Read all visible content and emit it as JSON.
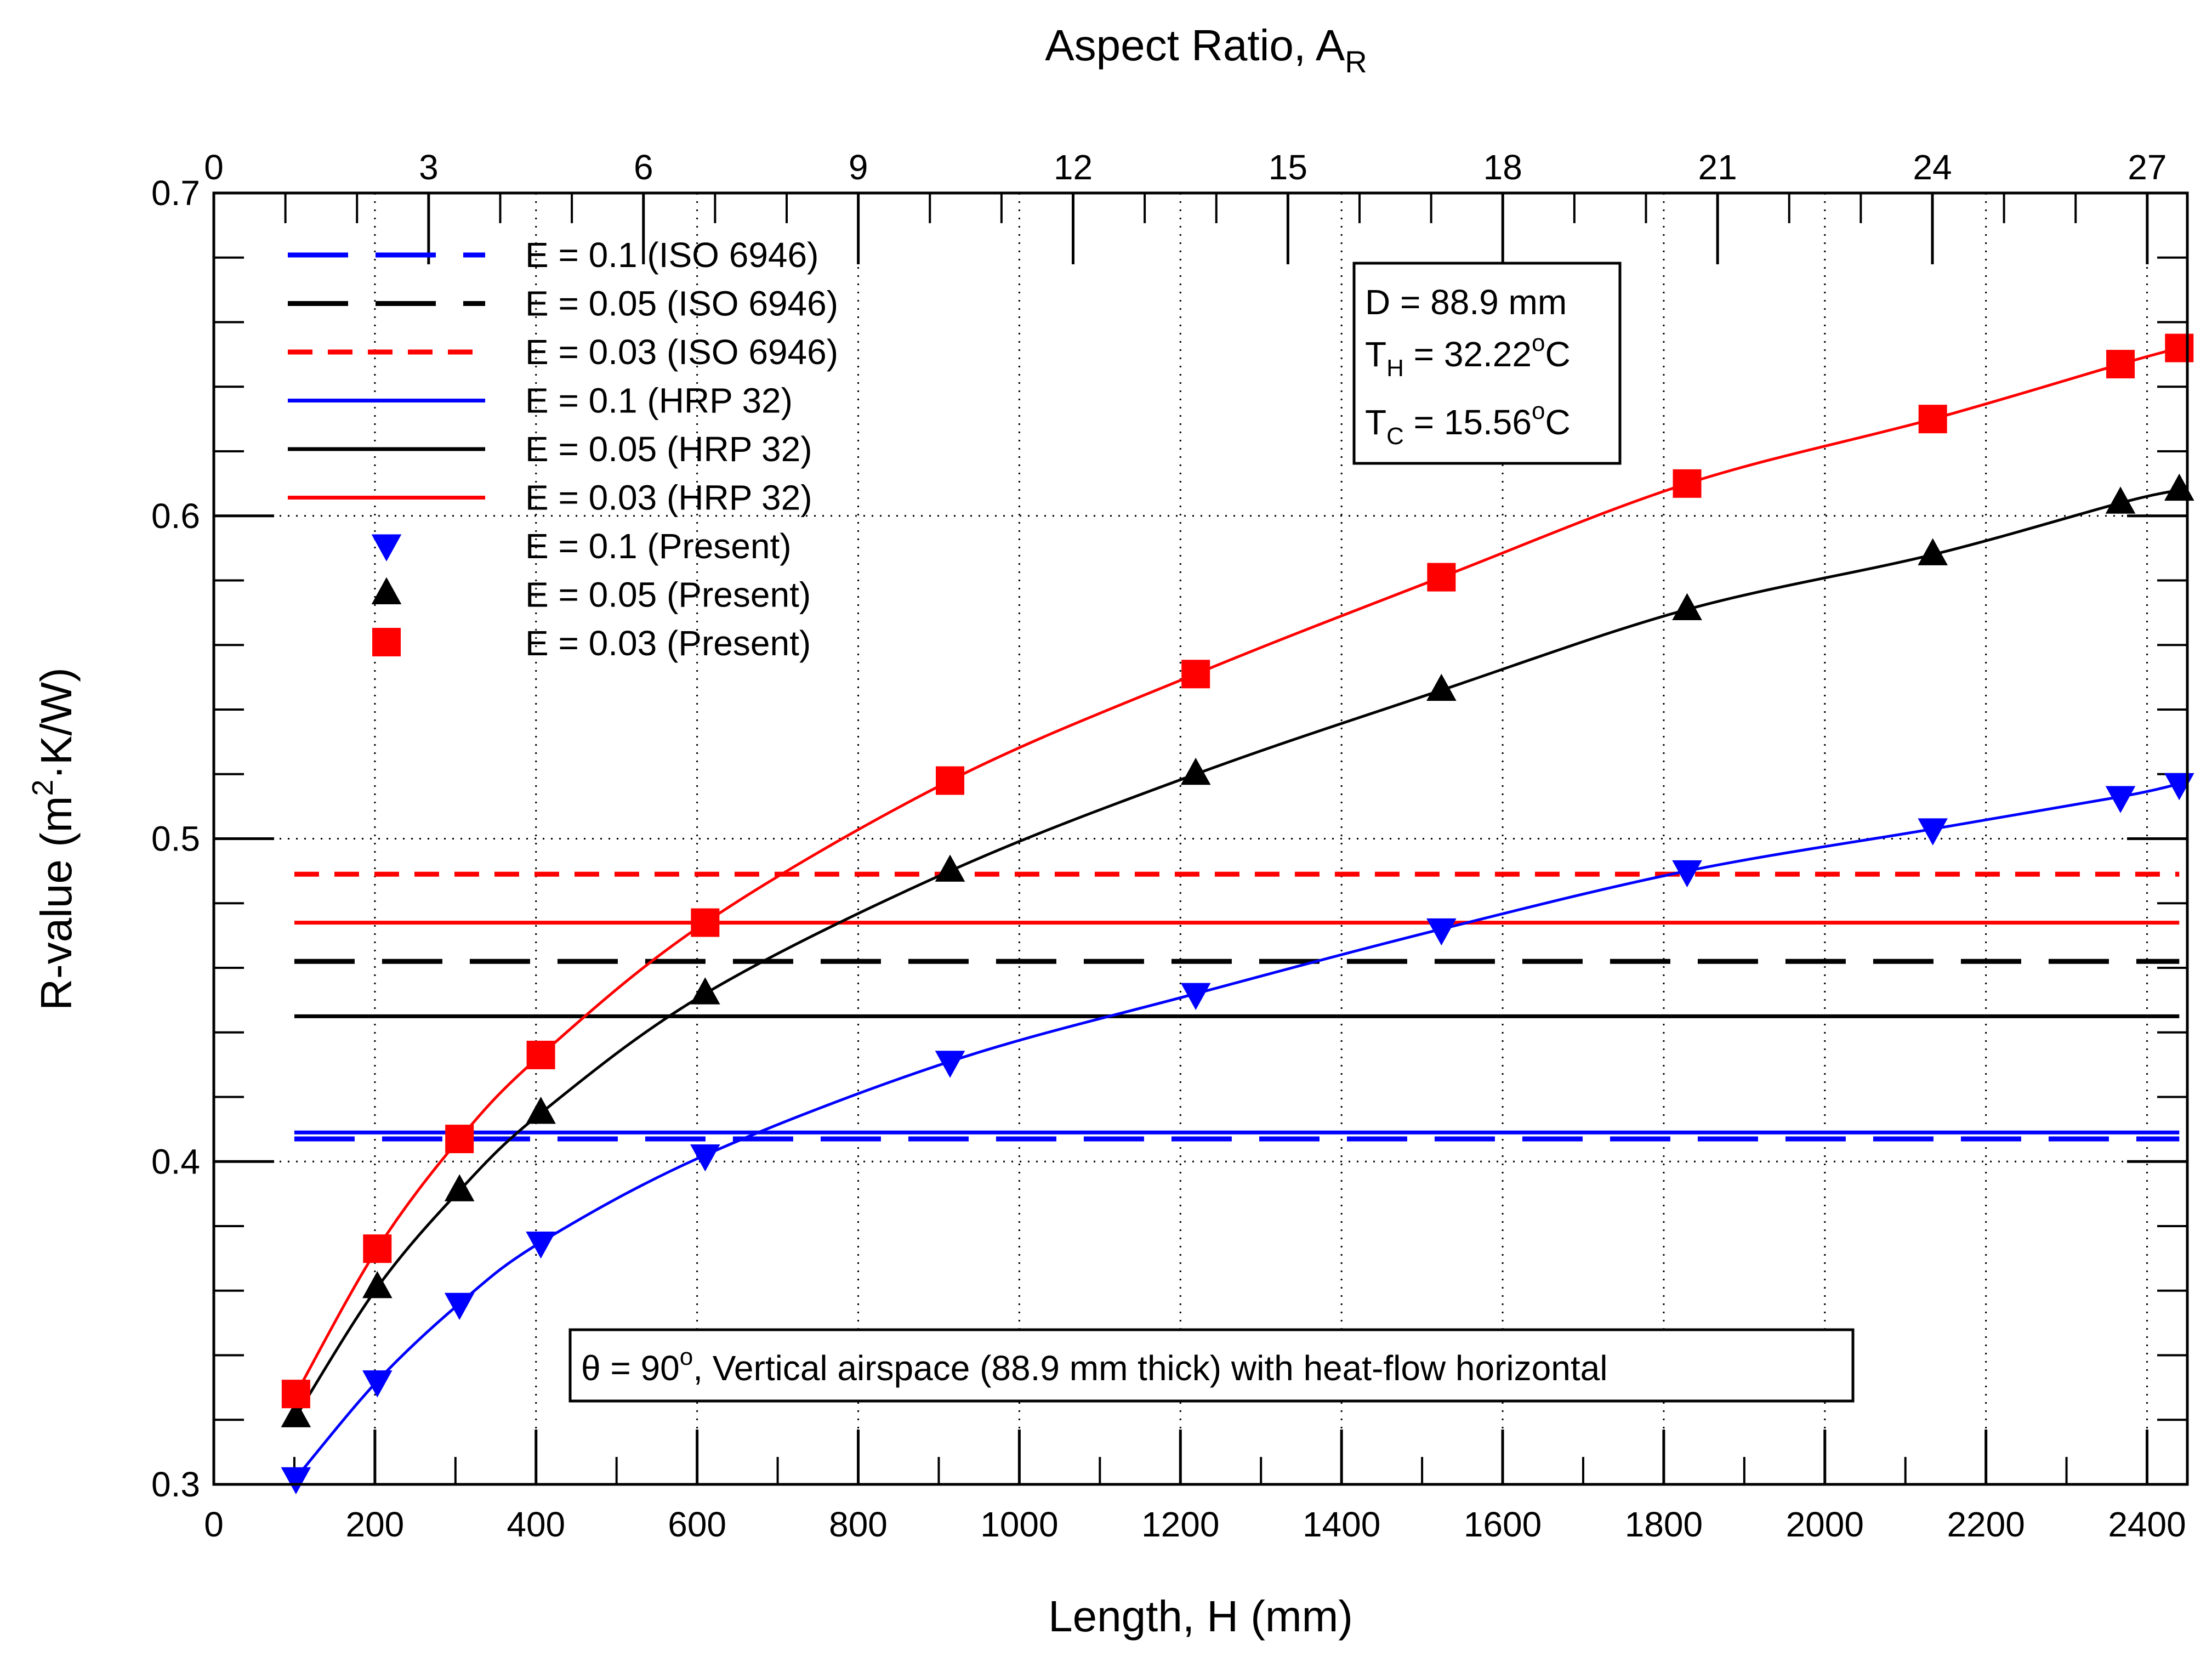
{
  "chart_data": {
    "type": "line",
    "title": "",
    "xlabel": "Length, H (mm)",
    "ylabel_main": "R-value (m",
    "ylabel_sup": "2",
    "ylabel_rest": "·K/W)",
    "top_xlabel_main": "Aspect Ratio, A",
    "top_xlabel_sub": "R",
    "xlim": [
      0,
      2450
    ],
    "ylim": [
      0.3,
      0.7
    ],
    "top_xlim": [
      0,
      27.56
    ],
    "x_ticks": [
      0,
      200,
      400,
      600,
      800,
      1000,
      1200,
      1400,
      1600,
      1800,
      2000,
      2200,
      2400
    ],
    "x_tick_labels": [
      "0",
      "200",
      "400",
      "600",
      "800",
      "1000",
      "1200",
      "1400",
      "1600",
      "1800",
      "2000",
      "2200",
      "2400"
    ],
    "y_ticks": [
      0.3,
      0.4,
      0.5,
      0.6,
      0.7
    ],
    "y_tick_labels": [
      "0.3",
      "0.4",
      "0.5",
      "0.6",
      "0.7"
    ],
    "top_ticks": [
      0,
      3,
      6,
      9,
      12,
      15,
      18,
      21,
      24,
      27
    ],
    "top_tick_labels": [
      "0",
      "3",
      "6",
      "9",
      "12",
      "15",
      "18",
      "21",
      "24",
      "27"
    ],
    "grid": "dotted",
    "legend_location": "upper-left",
    "series": [
      {
        "name": "E = 0.1 (ISO 6946)",
        "style": "long-dash",
        "color": "#0000ff",
        "x": [
          100,
          2440
        ],
        "y": [
          0.407,
          0.407
        ]
      },
      {
        "name": "E = 0.05 (ISO 6946)",
        "style": "long-dash",
        "color": "#000000",
        "x": [
          100,
          2440
        ],
        "y": [
          0.462,
          0.462
        ]
      },
      {
        "name": "E = 0.03 (ISO 6946)",
        "style": "short-dash",
        "color": "#ff0000",
        "x": [
          100,
          2440
        ],
        "y": [
          0.489,
          0.489
        ]
      },
      {
        "name": "E = 0.1 (HRP 32)",
        "style": "solid",
        "color": "#0000ff",
        "x": [
          100,
          2440
        ],
        "y": [
          0.409,
          0.409
        ]
      },
      {
        "name": "E = 0.05 (HRP 32)",
        "style": "solid",
        "color": "#000000",
        "x": [
          100,
          2440
        ],
        "y": [
          0.445,
          0.445
        ]
      },
      {
        "name": "E = 0.03 (HRP 32)",
        "style": "solid",
        "color": "#ff0000",
        "x": [
          100,
          2440
        ],
        "y": [
          0.474,
          0.474
        ]
      },
      {
        "name": "E = 0.1 (Present)",
        "style": "markers-line",
        "marker": "triangle-down",
        "color": "#0000ff",
        "x": [
          102,
          203,
          305,
          406,
          610,
          914,
          1219,
          1524,
          1829,
          2134,
          2367,
          2440
        ],
        "y": [
          0.302,
          0.332,
          0.356,
          0.375,
          0.402,
          0.431,
          0.452,
          0.472,
          0.49,
          0.503,
          0.513,
          0.517
        ]
      },
      {
        "name": "E = 0.05 (Present)",
        "style": "markers-line",
        "marker": "triangle-up",
        "color": "#000000",
        "x": [
          102,
          203,
          305,
          406,
          610,
          914,
          1219,
          1524,
          1829,
          2134,
          2367,
          2440
        ],
        "y": [
          0.321,
          0.361,
          0.391,
          0.415,
          0.452,
          0.49,
          0.52,
          0.546,
          0.571,
          0.588,
          0.604,
          0.608
        ]
      },
      {
        "name": "E = 0.03 (Present)",
        "style": "markers-line",
        "marker": "square",
        "color": "#ff0000",
        "x": [
          102,
          203,
          305,
          406,
          610,
          914,
          1219,
          1524,
          1829,
          2134,
          2367,
          2440
        ],
        "y": [
          0.328,
          0.373,
          0.407,
          0.433,
          0.474,
          0.518,
          0.551,
          0.581,
          0.61,
          0.63,
          0.647,
          0.652
        ]
      }
    ],
    "annotations": {
      "box_d": "D = 88.9 mm",
      "box_th_main": "T",
      "box_th_sub": "H",
      "box_th_value": " = 32.22",
      "box_th_sup": "o",
      "box_th_unit": "C",
      "box_tc_main": "T",
      "box_tc_sub": "C",
      "box_tc_value": " = 15.56",
      "box_tc_sup": "o",
      "box_tc_unit": "C",
      "note_theta": "θ = 90",
      "note_sup": "o",
      "note_rest": ", Vertical airspace (88.9 mm thick) with heat-flow horizontal"
    }
  }
}
